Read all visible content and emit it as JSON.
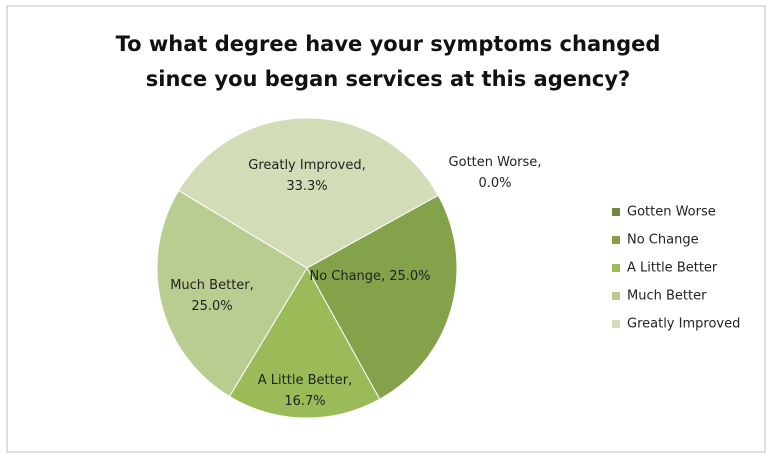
{
  "chart_data": {
    "type": "pie",
    "title": [
      "To what degree have your symptoms changed",
      "since you began services at this agency?"
    ],
    "categories": [
      "Gotten Worse",
      "No Change",
      "A Little Better",
      "Much Better",
      "Greatly Improved"
    ],
    "values": [
      0.0,
      25.0,
      16.7,
      25.0,
      33.3
    ],
    "value_labels": [
      "0.0%",
      "25.0%",
      "16.7%",
      "25.0%",
      "33.3%"
    ],
    "label_separator": ",",
    "colors": [
      "#71893c",
      "#84a24a",
      "#9bbb59",
      "#b9cd91",
      "#d2dcb6"
    ],
    "legend": "right"
  }
}
